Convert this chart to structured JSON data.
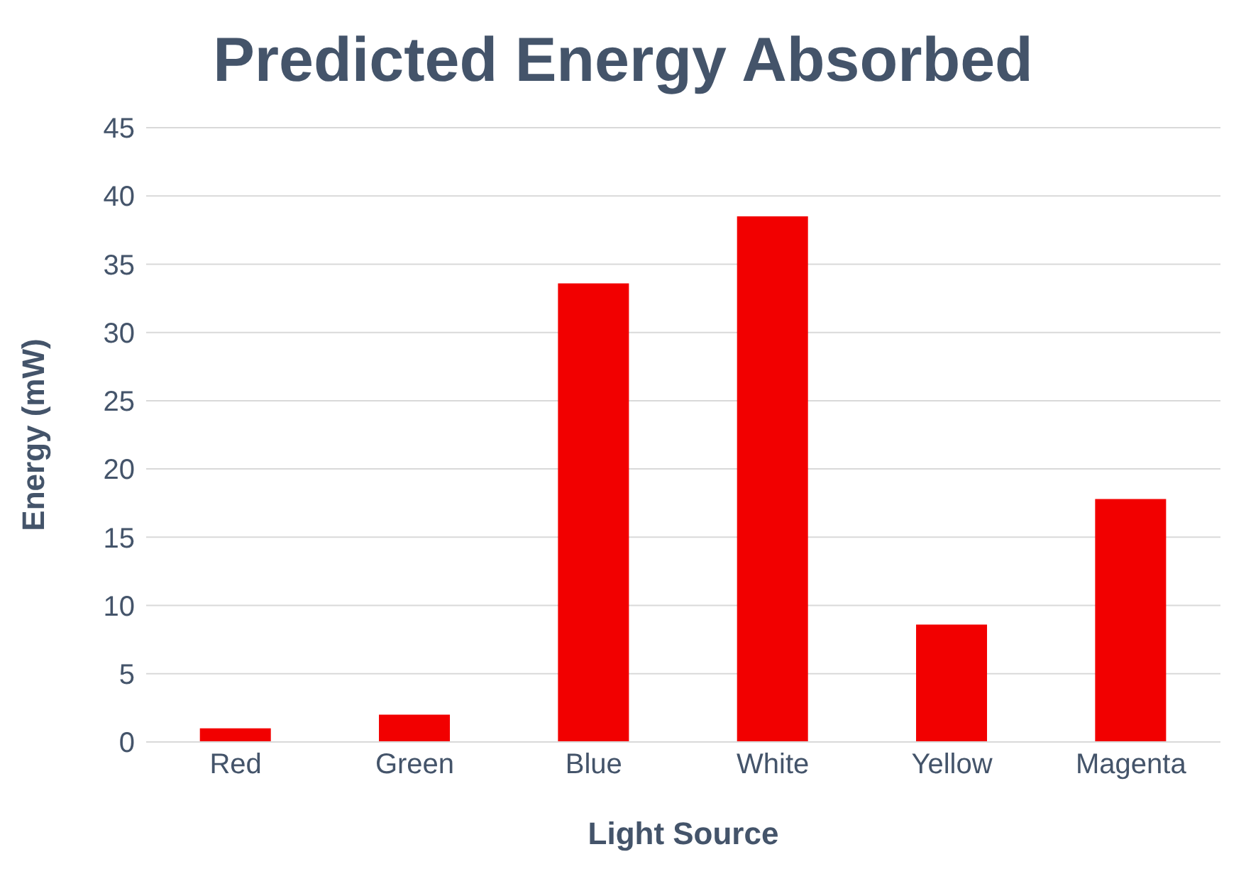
{
  "chart_data": {
    "type": "bar",
    "title": "Predicted Energy Absorbed",
    "xlabel": "Light Source",
    "ylabel": "Energy (mW)",
    "categories": [
      "Red",
      "Green",
      "Blue",
      "White",
      "Yellow",
      "Magenta"
    ],
    "values": [
      1.0,
      2.0,
      33.6,
      38.5,
      8.6,
      17.8
    ],
    "color": "#f20000",
    "ylim": [
      0,
      45
    ],
    "yticks": [
      0,
      5,
      10,
      15,
      20,
      25,
      30,
      35,
      40,
      45
    ],
    "grid": "y"
  }
}
